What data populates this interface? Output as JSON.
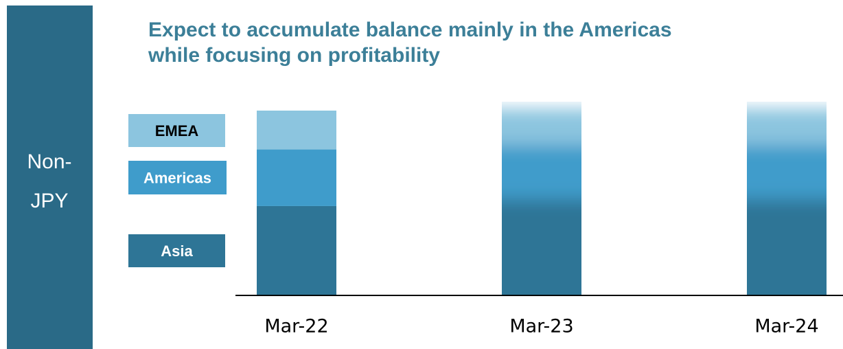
{
  "side_label": [
    "Non-",
    "JPY"
  ],
  "chart_data": {
    "type": "stacked_bar",
    "title": [
      "Expect to accumulate balance mainly in the Americas",
      "while focusing on profitability"
    ],
    "categories": [
      "Mar-22",
      "Mar-23",
      "Mar-24"
    ],
    "series": [
      {
        "name": "Asia",
        "color": "#2e7596",
        "values": [
          130,
          140,
          140
        ]
      },
      {
        "name": "Americas",
        "color": "#3f9ccb",
        "values": [
          83,
          80,
          80
        ]
      },
      {
        "name": "EMEA",
        "color": "#8cc5df",
        "values": [
          57,
          53,
          53
        ]
      }
    ],
    "ylim": [
      0,
      273
    ]
  }
}
